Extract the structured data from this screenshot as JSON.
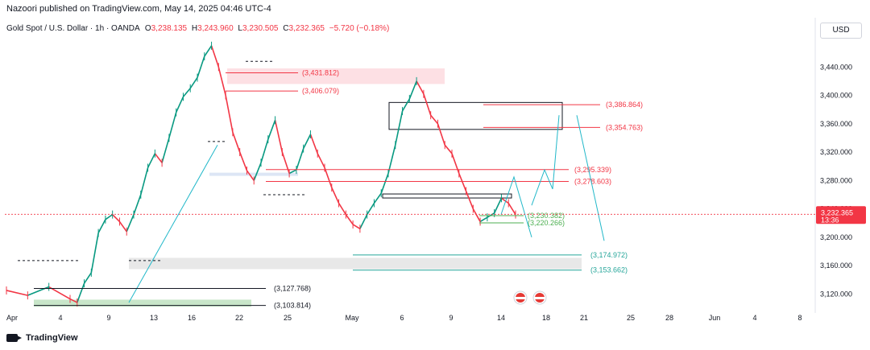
{
  "header": {
    "publisher": "Nazoori published on TradingView.com, May 14, 2025 04:46 UTC-4",
    "symbol": "Gold Spot / U.S. Dollar · 1h · OANDA",
    "open_label": "O",
    "open": "3,238.135",
    "high_label": "H",
    "high": "3,243.960",
    "low_label": "L",
    "low": "3,230.505",
    "close_label": "C",
    "close": "3,232.365",
    "change": "−5.720 (−0.18%)"
  },
  "currency_button": "USD",
  "footer": {
    "brand": "TradingView"
  },
  "colors": {
    "up": "#089981",
    "down": "#f23645",
    "red_line": "#f23645",
    "teal_line": "#26a69a",
    "green_line": "#4caf50",
    "price_badge": "#f23645",
    "pink_zone": "#fde0e4",
    "grey_zone": "#e8e8e8",
    "blue_zone": "#dde6f5",
    "green_zone": "#c8e6c9",
    "projection": "#22b8c9"
  },
  "chart_data": {
    "type": "candlestick",
    "timeframe": "1h",
    "x_tick_labels": [
      "Apr",
      "4",
      "9",
      "13",
      "16",
      "22",
      "25",
      "May",
      "6",
      "9",
      "14",
      "18",
      "21",
      "25",
      "28",
      "Jun",
      "4",
      "8"
    ],
    "y_tick_labels": [
      "3,440.000",
      "3,400.000",
      "3,360.000",
      "3,320.000",
      "3,280.000",
      "3,240.000",
      "3,200.000",
      "3,160.000",
      "3,120.000"
    ],
    "ylim": [
      3100,
      3480
    ],
    "last_price": "3,232.365",
    "countdown": "13:36",
    "price_path": [
      [
        0,
        3125
      ],
      [
        3,
        3118
      ],
      [
        6,
        3130
      ],
      [
        9,
        3113
      ],
      [
        10,
        3108
      ],
      [
        11,
        3135
      ],
      [
        12,
        3150
      ],
      [
        13,
        3206
      ],
      [
        14,
        3225
      ],
      [
        15,
        3232
      ],
      [
        16,
        3222
      ],
      [
        17,
        3208
      ],
      [
        18,
        3232
      ],
      [
        19,
        3260
      ],
      [
        20,
        3298
      ],
      [
        21,
        3318
      ],
      [
        22,
        3305
      ],
      [
        23,
        3340
      ],
      [
        24,
        3376
      ],
      [
        25,
        3398
      ],
      [
        26,
        3410
      ],
      [
        27,
        3425
      ],
      [
        28,
        3455
      ],
      [
        29,
        3470
      ],
      [
        30,
        3440
      ],
      [
        31,
        3400
      ],
      [
        32,
        3348
      ],
      [
        33,
        3320
      ],
      [
        34,
        3294
      ],
      [
        35,
        3280
      ],
      [
        36,
        3305
      ],
      [
        37,
        3338
      ],
      [
        38,
        3365
      ],
      [
        39,
        3320
      ],
      [
        40,
        3290
      ],
      [
        41,
        3295
      ],
      [
        42,
        3325
      ],
      [
        43,
        3345
      ],
      [
        44,
        3318
      ],
      [
        45,
        3298
      ],
      [
        46,
        3270
      ],
      [
        47,
        3248
      ],
      [
        48,
        3232
      ],
      [
        49,
        3218
      ],
      [
        50,
        3212
      ],
      [
        51,
        3232
      ],
      [
        52,
        3248
      ],
      [
        53,
        3262
      ],
      [
        54,
        3290
      ],
      [
        55,
        3330
      ],
      [
        56,
        3378
      ],
      [
        57,
        3395
      ],
      [
        58,
        3420
      ],
      [
        59,
        3402
      ],
      [
        60,
        3372
      ],
      [
        61,
        3360
      ],
      [
        62,
        3330
      ],
      [
        63,
        3318
      ],
      [
        64,
        3290
      ],
      [
        65,
        3265
      ],
      [
        66,
        3240
      ],
      [
        67,
        3222
      ],
      [
        68,
        3228
      ],
      [
        69,
        3234
      ],
      [
        70,
        3255
      ],
      [
        71,
        3248
      ],
      [
        72,
        3232
      ]
    ],
    "levels": [
      {
        "label": "(3,431.812)",
        "value": 3431.812,
        "color": "red"
      },
      {
        "label": "(3,406.079)",
        "value": 3406.079,
        "color": "red"
      },
      {
        "label": "(3,386.864)",
        "value": 3386.864,
        "color": "red"
      },
      {
        "label": "(3,354.763)",
        "value": 3354.763,
        "color": "red"
      },
      {
        "label": "(3,295.339)",
        "value": 3295.339,
        "color": "red"
      },
      {
        "label": "(3,278.603)",
        "value": 3278.603,
        "color": "red"
      },
      {
        "label": "(3,230.382)",
        "value": 3230.382,
        "color": "green"
      },
      {
        "label": "(3,220.266)",
        "value": 3220.266,
        "color": "green"
      },
      {
        "label": "(3,174.972)",
        "value": 3174.972,
        "color": "teal"
      },
      {
        "label": "(3,153.662)",
        "value": 3153.662,
        "color": "teal"
      },
      {
        "label": "(3,127.768)",
        "value": 3127.768,
        "color": "black"
      },
      {
        "label": "(3,103.814)",
        "value": 3103.814,
        "color": "black"
      }
    ]
  }
}
